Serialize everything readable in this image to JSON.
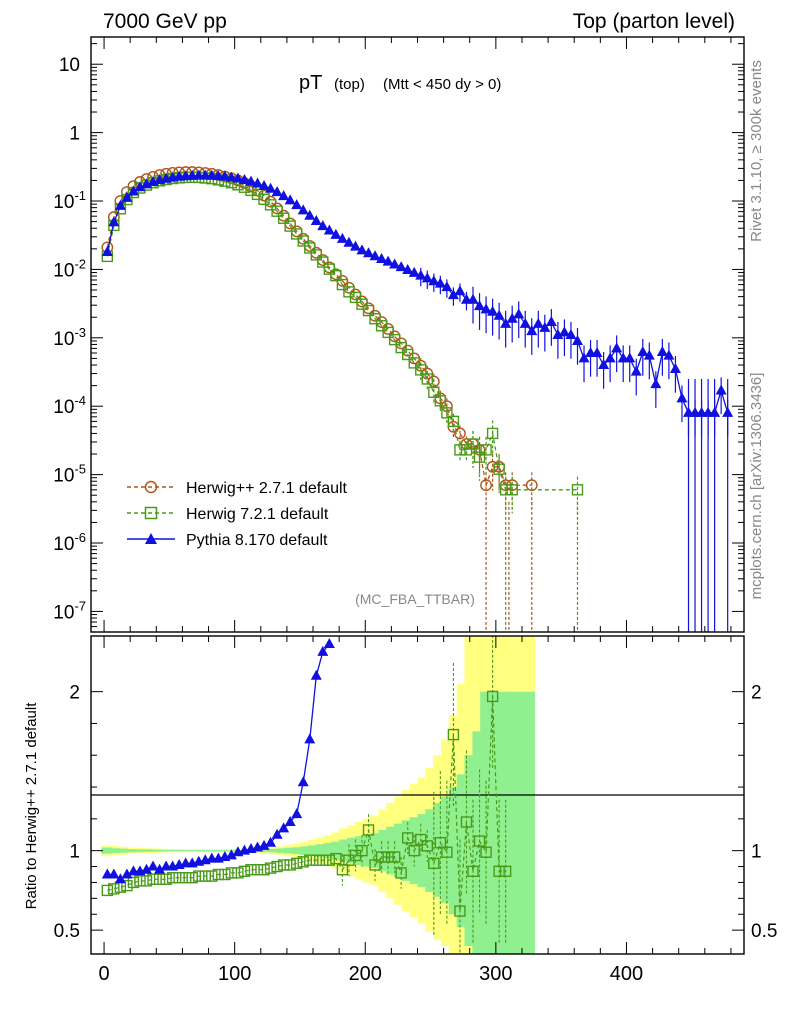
{
  "header": {
    "left": "7000 GeV pp",
    "right": "Top (parton level)"
  },
  "side_labels": {
    "rivet": "Rivet 3.1.10, ≥ 300k events",
    "mcplots": "mcplots.cern.ch [arXiv:1306.3436]"
  },
  "chart_data": [
    {
      "type": "scatter",
      "title_main": "pT",
      "title_sub": "(top)",
      "title_cond": "(Mtt < 450 dy > 0)",
      "analysis_tag": "(MC_FBA_TTBAR)",
      "yscale": "log",
      "xlim": [
        -10,
        490
      ],
      "ylim": [
        5e-08,
        25
      ],
      "ytick_labels": [
        "10",
        "1",
        "10-1",
        "10-2",
        "10-3",
        "10-4",
        "10-5",
        "10-6",
        "10-7"
      ],
      "legend": [
        "Herwig++ 2.7.1 default",
        "Herwig 7.2.1 default",
        "Pythia 8.170 default"
      ],
      "colors": {
        "herwigpp": "#b0561a",
        "herwig7": "#4a9a1a",
        "pythia": "#1010e0"
      },
      "series": [
        {
          "name": "Herwig++ 2.7.1 default",
          "marker": "open-circle",
          "line": "dashed",
          "x": [
            2.5,
            7.5,
            12.5,
            17.5,
            22.5,
            27.5,
            32.5,
            37.5,
            42.5,
            47.5,
            52.5,
            57.5,
            62.5,
            67.5,
            72.5,
            77.5,
            82.5,
            87.5,
            92.5,
            97.5,
            102.5,
            107.5,
            112.5,
            117.5,
            122.5,
            127.5,
            132.5,
            137.5,
            142.5,
            147.5,
            152.5,
            157.5,
            162.5,
            167.5,
            172.5,
            177.5,
            182.5,
            187.5,
            192.5,
            197.5,
            202.5,
            207.5,
            212.5,
            217.5,
            222.5,
            227.5,
            232.5,
            237.5,
            242.5,
            247.5,
            252.5,
            257.5,
            262.5,
            267.5,
            272.5,
            277.5,
            282.5,
            287.5,
            292.5,
            297.5,
            302.5,
            307.5,
            312.5,
            327.5
          ],
          "y": [
            0.021,
            0.058,
            0.1,
            0.135,
            0.165,
            0.19,
            0.21,
            0.225,
            0.24,
            0.25,
            0.258,
            0.262,
            0.265,
            0.265,
            0.262,
            0.257,
            0.25,
            0.24,
            0.228,
            0.215,
            0.2,
            0.183,
            0.163,
            0.142,
            0.12,
            0.098,
            0.078,
            0.061,
            0.047,
            0.036,
            0.028,
            0.022,
            0.0175,
            0.0137,
            0.0107,
            0.0085,
            0.0068,
            0.0054,
            0.0043,
            0.0034,
            0.0027,
            0.0021,
            0.0017,
            0.00135,
            0.00105,
            0.00083,
            0.00065,
            0.0005,
            0.00039,
            0.0003,
            0.00023,
            0.00013,
            0.0001,
            5e-05,
            4e-05,
            2.8e-05,
            2.8e-05,
            2.3e-05,
            7e-06,
            1.3e-05,
            1.3e-05,
            7e-06,
            7e-06,
            7e-06
          ]
        },
        {
          "name": "Herwig 7.2.1 default",
          "marker": "open-square",
          "line": "dashed",
          "x": [
            2.5,
            7.5,
            12.5,
            17.5,
            22.5,
            27.5,
            32.5,
            37.5,
            42.5,
            47.5,
            52.5,
            57.5,
            62.5,
            67.5,
            72.5,
            77.5,
            82.5,
            87.5,
            92.5,
            97.5,
            102.5,
            107.5,
            112.5,
            117.5,
            122.5,
            127.5,
            132.5,
            137.5,
            142.5,
            147.5,
            152.5,
            157.5,
            162.5,
            167.5,
            172.5,
            177.5,
            182.5,
            187.5,
            192.5,
            197.5,
            202.5,
            207.5,
            212.5,
            217.5,
            222.5,
            227.5,
            232.5,
            237.5,
            242.5,
            247.5,
            252.5,
            257.5,
            262.5,
            267.5,
            272.5,
            277.5,
            282.5,
            287.5,
            292.5,
            297.5,
            302.5,
            307.5,
            312.5,
            362.5
          ],
          "y": [
            0.0155,
            0.044,
            0.077,
            0.105,
            0.133,
            0.155,
            0.171,
            0.185,
            0.197,
            0.206,
            0.213,
            0.218,
            0.221,
            0.222,
            0.221,
            0.217,
            0.212,
            0.204,
            0.195,
            0.185,
            0.173,
            0.159,
            0.143,
            0.125,
            0.106,
            0.088,
            0.071,
            0.056,
            0.043,
            0.033,
            0.026,
            0.0206,
            0.0163,
            0.0128,
            0.0101,
            0.0081,
            0.006,
            0.0047,
            0.0039,
            0.0031,
            0.0025,
            0.0019,
            0.0015,
            0.0012,
            0.00094,
            0.00072,
            0.00057,
            0.00043,
            0.00034,
            0.00025,
            0.00016,
            0.00012,
            8e-05,
            6e-05,
            2.3e-05,
            2.3e-05,
            2.8e-05,
            1.8e-05,
            2.3e-05,
            4e-05,
            1.2e-05,
            6e-06,
            6e-06,
            6e-06
          ]
        },
        {
          "name": "Pythia 8.170 default",
          "marker": "filled-triangle",
          "line": "solid",
          "x": [
            2.5,
            7.5,
            12.5,
            17.5,
            22.5,
            27.5,
            32.5,
            37.5,
            42.5,
            47.5,
            52.5,
            57.5,
            62.5,
            67.5,
            72.5,
            77.5,
            82.5,
            87.5,
            92.5,
            97.5,
            102.5,
            107.5,
            112.5,
            117.5,
            122.5,
            127.5,
            132.5,
            137.5,
            142.5,
            147.5,
            152.5,
            157.5,
            162.5,
            167.5,
            172.5,
            177.5,
            182.5,
            187.5,
            192.5,
            197.5,
            202.5,
            207.5,
            212.5,
            217.5,
            222.5,
            227.5,
            232.5,
            237.5,
            242.5,
            247.5,
            252.5,
            257.5,
            262.5,
            267.5,
            272.5,
            277.5,
            282.5,
            287.5,
            292.5,
            297.5,
            302.5,
            307.5,
            312.5,
            317.5,
            322.5,
            327.5,
            332.5,
            337.5,
            342.5,
            347.5,
            352.5,
            357.5,
            362.5,
            367.5,
            372.5,
            377.5,
            382.5,
            387.5,
            392.5,
            397.5,
            402.5,
            407.5,
            412.5,
            417.5,
            422.5,
            427.5,
            432.5,
            437.5,
            442.5,
            447.5,
            452.5,
            457.5,
            462.5,
            467.5,
            472.5,
            477.5
          ],
          "y": [
            0.018,
            0.049,
            0.085,
            0.111,
            0.138,
            0.159,
            0.176,
            0.19,
            0.202,
            0.212,
            0.22,
            0.226,
            0.23,
            0.233,
            0.235,
            0.235,
            0.234,
            0.231,
            0.227,
            0.22,
            0.213,
            0.203,
            0.192,
            0.18,
            0.166,
            0.151,
            0.135,
            0.118,
            0.102,
            0.087,
            0.073,
            0.061,
            0.051,
            0.043,
            0.037,
            0.032,
            0.028,
            0.0245,
            0.0215,
            0.019,
            0.0172,
            0.0156,
            0.0142,
            0.013,
            0.0118,
            0.0108,
            0.0098,
            0.0089,
            0.0081,
            0.0074,
            0.0067,
            0.0062,
            0.0055,
            0.0042,
            0.0048,
            0.0036,
            0.0036,
            0.0029,
            0.0026,
            0.0024,
            0.0021,
            0.0016,
            0.0019,
            0.0022,
            0.0016,
            0.00125,
            0.0016,
            0.0014,
            0.0017,
            0.0011,
            0.0012,
            0.0011,
            0.0009,
            0.0005,
            0.0006,
            0.0006,
            0.0004,
            0.0005,
            0.0007,
            0.0005,
            0.0005,
            0.00032,
            0.00062,
            0.00055,
            0.00021,
            0.00062,
            0.00055,
            0.00035,
            0.00013,
            8e-05,
            8e-05,
            8e-05,
            8e-05,
            8e-05,
            0.00017,
            8e-05
          ]
        }
      ]
    },
    {
      "type": "scatter",
      "ylabel": "Ratio to Herwig++ 2.7.1 default",
      "xlim": [
        -10,
        490
      ],
      "ylim": [
        0.35,
        2.35
      ],
      "xtick_labels": [
        "0",
        "100",
        "200",
        "300",
        "400"
      ],
      "ytick_labels": [
        "0.5",
        "1",
        "2"
      ],
      "band_x": [
        -2,
        6,
        12,
        18,
        24,
        30,
        36,
        42,
        48,
        54,
        60,
        66,
        72,
        78,
        84,
        90,
        96,
        102,
        108,
        114,
        120,
        126,
        132,
        138,
        144,
        150,
        156,
        162,
        168,
        174,
        180,
        186,
        192,
        198,
        204,
        210,
        216,
        222,
        228,
        234,
        240,
        246,
        252,
        258,
        264,
        270,
        276,
        282,
        288,
        294,
        300,
        306,
        312,
        318,
        324,
        330
      ],
      "band_green_lo": [
        0.98,
        0.985,
        0.987,
        0.99,
        0.991,
        0.992,
        0.993,
        0.994,
        0.995,
        0.995,
        0.996,
        0.996,
        0.996,
        0.996,
        0.996,
        0.996,
        0.995,
        0.995,
        0.994,
        0.993,
        0.991,
        0.989,
        0.986,
        0.982,
        0.978,
        0.973,
        0.967,
        0.96,
        0.952,
        0.943,
        0.93,
        0.92,
        0.91,
        0.9,
        0.89,
        0.87,
        0.85,
        0.83,
        0.81,
        0.79,
        0.77,
        0.74,
        0.71,
        0.67,
        0.6,
        0.52,
        0.4,
        0.35,
        0.35,
        0.35,
        0.35,
        0.35,
        0.35,
        0.35,
        0.35,
        0.35
      ],
      "band_green_hi": [
        1.02,
        1.015,
        1.013,
        1.01,
        1.009,
        1.008,
        1.007,
        1.006,
        1.005,
        1.005,
        1.004,
        1.004,
        1.004,
        1.004,
        1.004,
        1.004,
        1.005,
        1.005,
        1.006,
        1.007,
        1.009,
        1.011,
        1.014,
        1.018,
        1.022,
        1.027,
        1.033,
        1.04,
        1.048,
        1.057,
        1.07,
        1.08,
        1.09,
        1.1,
        1.11,
        1.13,
        1.15,
        1.17,
        1.19,
        1.21,
        1.23,
        1.26,
        1.3,
        1.34,
        1.4,
        1.48,
        1.6,
        1.75,
        2.0,
        2.0,
        2.0,
        2.0,
        2.0,
        2.0,
        2.0,
        2.0
      ],
      "band_yellow_lo": [
        0.965,
        0.97,
        0.975,
        0.98,
        0.982,
        0.984,
        0.986,
        0.988,
        0.989,
        0.99,
        0.991,
        0.991,
        0.991,
        0.991,
        0.991,
        0.991,
        0.99,
        0.99,
        0.988,
        0.986,
        0.982,
        0.978,
        0.972,
        0.964,
        0.956,
        0.946,
        0.934,
        0.92,
        0.904,
        0.886,
        0.86,
        0.84,
        0.82,
        0.8,
        0.78,
        0.74,
        0.7,
        0.66,
        0.62,
        0.58,
        0.54,
        0.49,
        0.44,
        0.4,
        0.35,
        0.35,
        0.35,
        0.35,
        0.35,
        0.35,
        0.35,
        0.35,
        0.35,
        0.35,
        0.35,
        0.35
      ],
      "band_yellow_hi": [
        1.035,
        1.03,
        1.025,
        1.02,
        1.018,
        1.016,
        1.014,
        1.012,
        1.011,
        1.01,
        1.009,
        1.009,
        1.009,
        1.009,
        1.009,
        1.009,
        1.01,
        1.01,
        1.012,
        1.014,
        1.018,
        1.022,
        1.028,
        1.036,
        1.044,
        1.054,
        1.066,
        1.08,
        1.096,
        1.114,
        1.14,
        1.16,
        1.18,
        1.2,
        1.22,
        1.26,
        1.3,
        1.34,
        1.38,
        1.42,
        1.46,
        1.52,
        1.6,
        1.7,
        1.85,
        2.05,
        2.35,
        2.35,
        2.35,
        2.35,
        2.35,
        2.35,
        2.35,
        2.35,
        2.35,
        2.35
      ],
      "series": [
        {
          "name": "Herwig 7.2.1 default",
          "x": [
            2.5,
            7.5,
            12.5,
            17.5,
            22.5,
            27.5,
            32.5,
            37.5,
            42.5,
            47.5,
            52.5,
            57.5,
            62.5,
            67.5,
            72.5,
            77.5,
            82.5,
            87.5,
            92.5,
            97.5,
            102.5,
            107.5,
            112.5,
            117.5,
            122.5,
            127.5,
            132.5,
            137.5,
            142.5,
            147.5,
            152.5,
            157.5,
            162.5,
            167.5,
            172.5,
            177.5,
            182.5,
            187.5,
            192.5,
            197.5,
            202.5,
            207.5,
            212.5,
            217.5,
            222.5,
            227.5,
            232.5,
            237.5,
            242.5,
            247.5,
            252.5,
            257.5,
            262.5,
            267.5,
            272.5,
            277.5,
            282.5,
            287.5,
            292.5,
            297.5,
            302.5,
            307.5
          ],
          "y": [
            0.75,
            0.76,
            0.77,
            0.78,
            0.8,
            0.81,
            0.81,
            0.82,
            0.82,
            0.82,
            0.83,
            0.83,
            0.83,
            0.83,
            0.84,
            0.84,
            0.84,
            0.85,
            0.85,
            0.86,
            0.86,
            0.87,
            0.88,
            0.88,
            0.88,
            0.89,
            0.9,
            0.91,
            0.91,
            0.92,
            0.93,
            0.94,
            0.94,
            0.94,
            0.94,
            0.95,
            0.88,
            0.94,
            0.97,
            1.0,
            1.13,
            0.91,
            0.96,
            0.96,
            0.96,
            0.86,
            1.08,
            1.0,
            1.07,
            1.03,
            0.92,
            1.05,
            0.99,
            1.73,
            0.62,
            1.18,
            0.87,
            1.06,
            0.99,
            1.97,
            0.87,
            0.87
          ]
        },
        {
          "name": "Pythia 8.170 default",
          "x": [
            2.5,
            7.5,
            12.5,
            17.5,
            22.5,
            27.5,
            32.5,
            37.5,
            42.5,
            47.5,
            52.5,
            57.5,
            62.5,
            67.5,
            72.5,
            77.5,
            82.5,
            87.5,
            92.5,
            97.5,
            102.5,
            107.5,
            112.5,
            117.5,
            122.5,
            127.5,
            132.5,
            137.5,
            142.5,
            147.5,
            152.5,
            157.5,
            162.5,
            167.5,
            172.5
          ],
          "y": [
            0.85,
            0.85,
            0.82,
            0.85,
            0.87,
            0.87,
            0.88,
            0.9,
            0.88,
            0.9,
            0.9,
            0.91,
            0.92,
            0.92,
            0.93,
            0.94,
            0.95,
            0.95,
            0.96,
            0.97,
            0.99,
            1.0,
            1.01,
            1.02,
            1.03,
            1.05,
            1.1,
            1.14,
            1.18,
            1.23,
            1.43,
            1.7,
            2.1,
            2.25,
            2.3
          ]
        }
      ]
    }
  ]
}
